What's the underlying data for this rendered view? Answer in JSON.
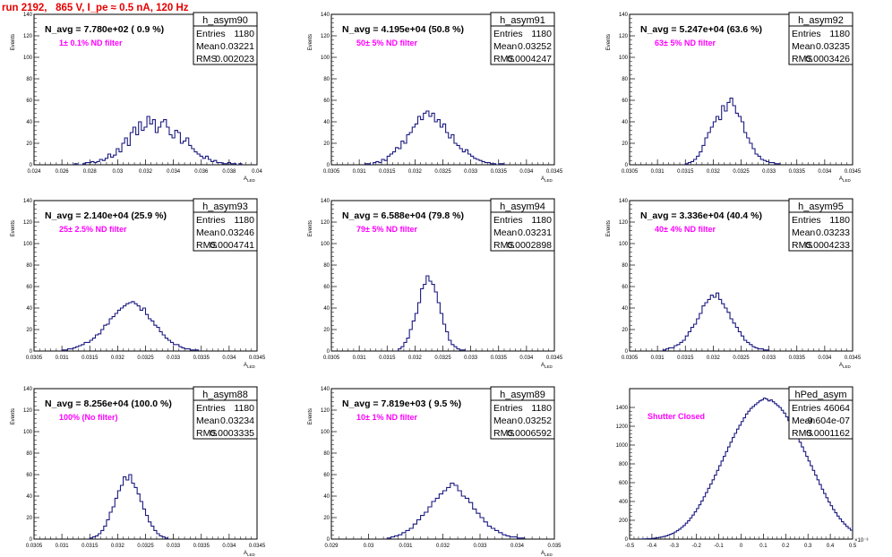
{
  "run_title": "run 2192,   865 V, I_pe ≈ 0.5 nA, 120 Hz",
  "colors": {
    "title": "#e60000",
    "histogram": "#1a1a80",
    "annotation": "#ff00ff"
  },
  "chart_data": [
    {
      "type": "histogram",
      "name": "h_asym90",
      "n_avg": "N_avg = 7.780e+02 ( 0.9 %)",
      "annotation": "1± 0.1% ND filter",
      "stats": {
        "entries_label": "Entries",
        "entries": "1180",
        "mean_label": "Mean",
        "mean": "0.03221",
        "rms_label": "RMS",
        "rms": "0.002023"
      },
      "ylabel": "Events",
      "xlabel": "A_{LED}",
      "xlim": [
        0.024,
        0.04
      ],
      "ylim": [
        0,
        140
      ],
      "xticks": [
        "0.024",
        "0.026",
        "0.028",
        "0.03",
        "0.032",
        "0.034",
        "0.036",
        "0.038",
        "0.04"
      ],
      "yticks": [
        "0",
        "20",
        "40",
        "60",
        "80",
        "100",
        "120",
        "140"
      ],
      "bin_start": 0.0269,
      "bin_width": 0.0002,
      "values": [
        1,
        0,
        0,
        1,
        2,
        2,
        3,
        2,
        3,
        5,
        4,
        6,
        10,
        7,
        9,
        15,
        12,
        20,
        25,
        18,
        30,
        35,
        28,
        40,
        32,
        35,
        45,
        38,
        42,
        30,
        35,
        40,
        42,
        35,
        28,
        25,
        32,
        30,
        20,
        22,
        25,
        18,
        15,
        12,
        10,
        8,
        6,
        8,
        5,
        3,
        4,
        2,
        2,
        1,
        1,
        2,
        1,
        1,
        0,
        1
      ]
    },
    {
      "type": "histogram",
      "name": "h_asym91",
      "n_avg": "N_avg = 4.195e+04 (50.8 %)",
      "annotation": "50± 5% ND filter",
      "stats": {
        "entries_label": "Entries",
        "entries": "1180",
        "mean_label": "Mean",
        "mean": "0.03252",
        "rms_label": "RMS",
        "rms": "0.0004247"
      },
      "ylabel": "Events",
      "xlabel": "A_{LED}",
      "xlim": [
        0.0305,
        0.0345
      ],
      "ylim": [
        0,
        140
      ],
      "xticks": [
        "0.0305",
        "0.031",
        "0.0315",
        "0.032",
        "0.0325",
        "0.033",
        "0.0335",
        "0.034",
        "0.0345"
      ],
      "yticks": [
        "0",
        "20",
        "40",
        "60",
        "80",
        "100",
        "120",
        "140"
      ],
      "bin_start": 0.0311,
      "bin_width": 5e-05,
      "values": [
        1,
        1,
        0,
        2,
        3,
        2,
        5,
        4,
        8,
        10,
        12,
        16,
        15,
        22,
        20,
        28,
        30,
        35,
        38,
        45,
        42,
        48,
        50,
        45,
        48,
        40,
        42,
        35,
        38,
        30,
        25,
        28,
        20,
        18,
        15,
        12,
        14,
        10,
        8,
        6,
        5,
        4,
        3,
        2,
        2,
        1,
        1,
        0,
        1,
        1
      ]
    },
    {
      "type": "histogram",
      "name": "h_asym92",
      "n_avg": "N_avg = 5.247e+04 (63.6 %)",
      "annotation": "63± 5% ND filter",
      "stats": {
        "entries_label": "Entries",
        "entries": "1180",
        "mean_label": "Mean",
        "mean": "0.03235",
        "rms_label": "RMS",
        "rms": "0.0003426"
      },
      "ylabel": "Events",
      "xlabel": "A_{LED}",
      "xlim": [
        0.0305,
        0.0345
      ],
      "ylim": [
        0,
        140
      ],
      "xticks": [
        "0.0305",
        "0.031",
        "0.0315",
        "0.032",
        "0.0325",
        "0.033",
        "0.0335",
        "0.034",
        "0.0345"
      ],
      "yticks": [
        "0",
        "20",
        "40",
        "60",
        "80",
        "100",
        "120",
        "140"
      ],
      "bin_start": 0.0315,
      "bin_width": 5e-05,
      "values": [
        1,
        2,
        3,
        5,
        8,
        12,
        18,
        25,
        30,
        35,
        40,
        45,
        42,
        55,
        50,
        58,
        62,
        55,
        48,
        45,
        40,
        30,
        25,
        20,
        15,
        10,
        8,
        5,
        4,
        3,
        2,
        2,
        1,
        1
      ]
    },
    {
      "type": "histogram",
      "name": "h_asym93",
      "n_avg": "N_avg = 2.140e+04 (25.9 %)",
      "annotation": "25± 2.5% ND filter",
      "stats": {
        "entries_label": "Entries",
        "entries": "1180",
        "mean_label": "Mean",
        "mean": "0.03246",
        "rms_label": "RMS",
        "rms": "0.0004741"
      },
      "ylabel": "Events",
      "xlabel": "A_{LED}",
      "xlim": [
        0.0305,
        0.0345
      ],
      "ylim": [
        0,
        140
      ],
      "xticks": [
        "0.0305",
        "0.031",
        "0.0315",
        "0.032",
        "0.0325",
        "0.033",
        "0.0335",
        "0.034",
        "0.0345"
      ],
      "yticks": [
        "0",
        "20",
        "40",
        "60",
        "80",
        "100",
        "120",
        "140"
      ],
      "bin_start": 0.031,
      "bin_width": 5e-05,
      "values": [
        1,
        1,
        2,
        2,
        3,
        4,
        5,
        6,
        8,
        8,
        10,
        12,
        15,
        16,
        20,
        24,
        25,
        30,
        32,
        35,
        38,
        40,
        42,
        44,
        45,
        46,
        44,
        42,
        38,
        40,
        34,
        30,
        28,
        24,
        22,
        18,
        15,
        12,
        10,
        8,
        6,
        6,
        4,
        3,
        2,
        2,
        1,
        1,
        1
      ]
    },
    {
      "type": "histogram",
      "name": "h_asym94",
      "n_avg": "N_avg = 6.588e+04 (79.8 %)",
      "annotation": "79± 5% ND filter",
      "stats": {
        "entries_label": "Entries",
        "entries": "1180",
        "mean_label": "Mean",
        "mean": "0.03231",
        "rms_label": "RMS",
        "rms": "0.0002898"
      },
      "ylabel": "Events",
      "xlabel": "A_{LED}",
      "xlim": [
        0.0305,
        0.0345
      ],
      "ylim": [
        0,
        140
      ],
      "xticks": [
        "0.0305",
        "0.031",
        "0.0315",
        "0.032",
        "0.0325",
        "0.033",
        "0.0335",
        "0.034",
        "0.0345"
      ],
      "yticks": [
        "0",
        "20",
        "40",
        "60",
        "80",
        "100",
        "120",
        "140"
      ],
      "bin_start": 0.0317,
      "bin_width": 5e-05,
      "values": [
        2,
        4,
        8,
        12,
        20,
        28,
        35,
        45,
        58,
        62,
        70,
        65,
        62,
        55,
        45,
        35,
        25,
        18,
        10,
        6,
        4,
        2,
        1,
        1
      ]
    },
    {
      "type": "histogram",
      "name": "h_asym95",
      "n_avg": "N_avg = 3.336e+04 (40.4 %)",
      "annotation": "40± 4% ND filter",
      "stats": {
        "entries_label": "Entries",
        "entries": "1180",
        "mean_label": "Mean",
        "mean": "0.03233",
        "rms_label": "RMS",
        "rms": "0.0004233"
      },
      "ylabel": "Events",
      "xlabel": "A_{LED}",
      "xlim": [
        0.0305,
        0.0345
      ],
      "ylim": [
        0,
        140
      ],
      "xticks": [
        "0.0305",
        "0.031",
        "0.0315",
        "0.032",
        "0.0325",
        "0.033",
        "0.0335",
        "0.034",
        "0.0345"
      ],
      "yticks": [
        "0",
        "20",
        "40",
        "60",
        "80",
        "100",
        "120",
        "140"
      ],
      "bin_start": 0.0311,
      "bin_width": 5e-05,
      "values": [
        1,
        2,
        3,
        3,
        5,
        6,
        8,
        10,
        14,
        18,
        22,
        25,
        30,
        35,
        42,
        45,
        48,
        52,
        50,
        54,
        48,
        44,
        40,
        36,
        30,
        26,
        22,
        18,
        14,
        10,
        8,
        6,
        4,
        3,
        2,
        2,
        1,
        1
      ]
    },
    {
      "type": "histogram",
      "name": "h_asym88",
      "n_avg": "N_avg = 8.256e+04 (100.0 %)",
      "annotation": "100% (No filter)",
      "stats": {
        "entries_label": "Entries",
        "entries": "1180",
        "mean_label": "Mean",
        "mean": "0.03234",
        "rms_label": "RMS",
        "rms": "0.0003335"
      },
      "ylabel": "Events",
      "xlabel": "A_{LED}",
      "xlim": [
        0.0305,
        0.0345
      ],
      "ylim": [
        0,
        140
      ],
      "xticks": [
        "0.0305",
        "0.031",
        "0.0315",
        "0.032",
        "0.0325",
        "0.033",
        "0.0335",
        "0.034",
        "0.0345"
      ],
      "yticks": [
        "0",
        "20",
        "40",
        "60",
        "80",
        "100",
        "120",
        "140"
      ],
      "bin_start": 0.0315,
      "bin_width": 5e-05,
      "values": [
        1,
        2,
        3,
        5,
        8,
        12,
        18,
        25,
        30,
        38,
        45,
        50,
        58,
        55,
        60,
        52,
        48,
        42,
        35,
        28,
        22,
        16,
        12,
        8,
        5,
        3,
        2,
        1
      ]
    },
    {
      "type": "histogram",
      "name": "h_asym89",
      "n_avg": "N_avg = 7.819e+03 ( 9.5 %)",
      "annotation": "10± 1% ND filter",
      "stats": {
        "entries_label": "Entries",
        "entries": "1180",
        "mean_label": "Mean",
        "mean": "0.03252",
        "rms_label": "RMS",
        "rms": "0.0006592"
      },
      "ylabel": "Events",
      "xlabel": "A_{LED}",
      "xlim": [
        0.029,
        0.035
      ],
      "ylim": [
        0,
        140
      ],
      "xticks": [
        "0.029",
        "0.03",
        "0.031",
        "0.032",
        "0.033",
        "0.034",
        "0.035"
      ],
      "yticks": [
        "0",
        "20",
        "40",
        "60",
        "80",
        "100",
        "120",
        "140"
      ],
      "bin_start": 0.0305,
      "bin_width": 0.0001,
      "values": [
        1,
        2,
        3,
        4,
        6,
        8,
        10,
        14,
        18,
        22,
        25,
        30,
        35,
        38,
        42,
        45,
        48,
        52,
        50,
        45,
        40,
        38,
        34,
        28,
        24,
        20,
        16,
        12,
        10,
        8,
        6,
        4,
        3,
        2,
        2,
        1,
        1
      ]
    },
    {
      "type": "histogram",
      "name": "hPed_asym",
      "n_avg": "",
      "annotation": "Shutter Closed",
      "stats": {
        "entries_label": "Entries",
        "entries": "46064",
        "mean_label": "Mean",
        "mean": "-9.604e-07",
        "rms_label": "RMS",
        "rms": "0.0001162"
      },
      "ylabel": "",
      "xlabel": "",
      "xexp": "×10⁻³",
      "xlim": [
        -0.5,
        0.5
      ],
      "ylim": [
        0,
        1600
      ],
      "xticks": [
        "-0.5",
        "-0.4",
        "-0.3",
        "-0.2",
        "-0.1",
        "0",
        "0.1",
        "0.2",
        "0.3",
        "0.4",
        "0.5"
      ],
      "yticks": [
        "0",
        "200",
        "400",
        "600",
        "800",
        "1000",
        "1200",
        "1400"
      ],
      "bin_start": -0.45,
      "bin_width": 0.01,
      "values": [
        1,
        2,
        3,
        4,
        6,
        8,
        10,
        14,
        18,
        22,
        28,
        34,
        42,
        52,
        62,
        75,
        90,
        105,
        125,
        145,
        170,
        195,
        225,
        255,
        290,
        325,
        365,
        405,
        450,
        495,
        540,
        585,
        630,
        680,
        730,
        780,
        830,
        880,
        930,
        980,
        1030,
        1080,
        1125,
        1170,
        1210,
        1250,
        1290,
        1330,
        1360,
        1390,
        1410,
        1430,
        1450,
        1470,
        1480,
        1500,
        1490,
        1470,
        1480,
        1460,
        1440,
        1420,
        1400,
        1370,
        1340,
        1300,
        1260,
        1220,
        1180,
        1130,
        1080,
        1030,
        980,
        930,
        880,
        830,
        780,
        730,
        680,
        630,
        580,
        530,
        485,
        440,
        395,
        355,
        315,
        280,
        245,
        215,
        185,
        160,
        135,
        115,
        95,
        78,
        62,
        50,
        40,
        32,
        25,
        19,
        14,
        10,
        7,
        5,
        3,
        2,
        1
      ]
    }
  ]
}
